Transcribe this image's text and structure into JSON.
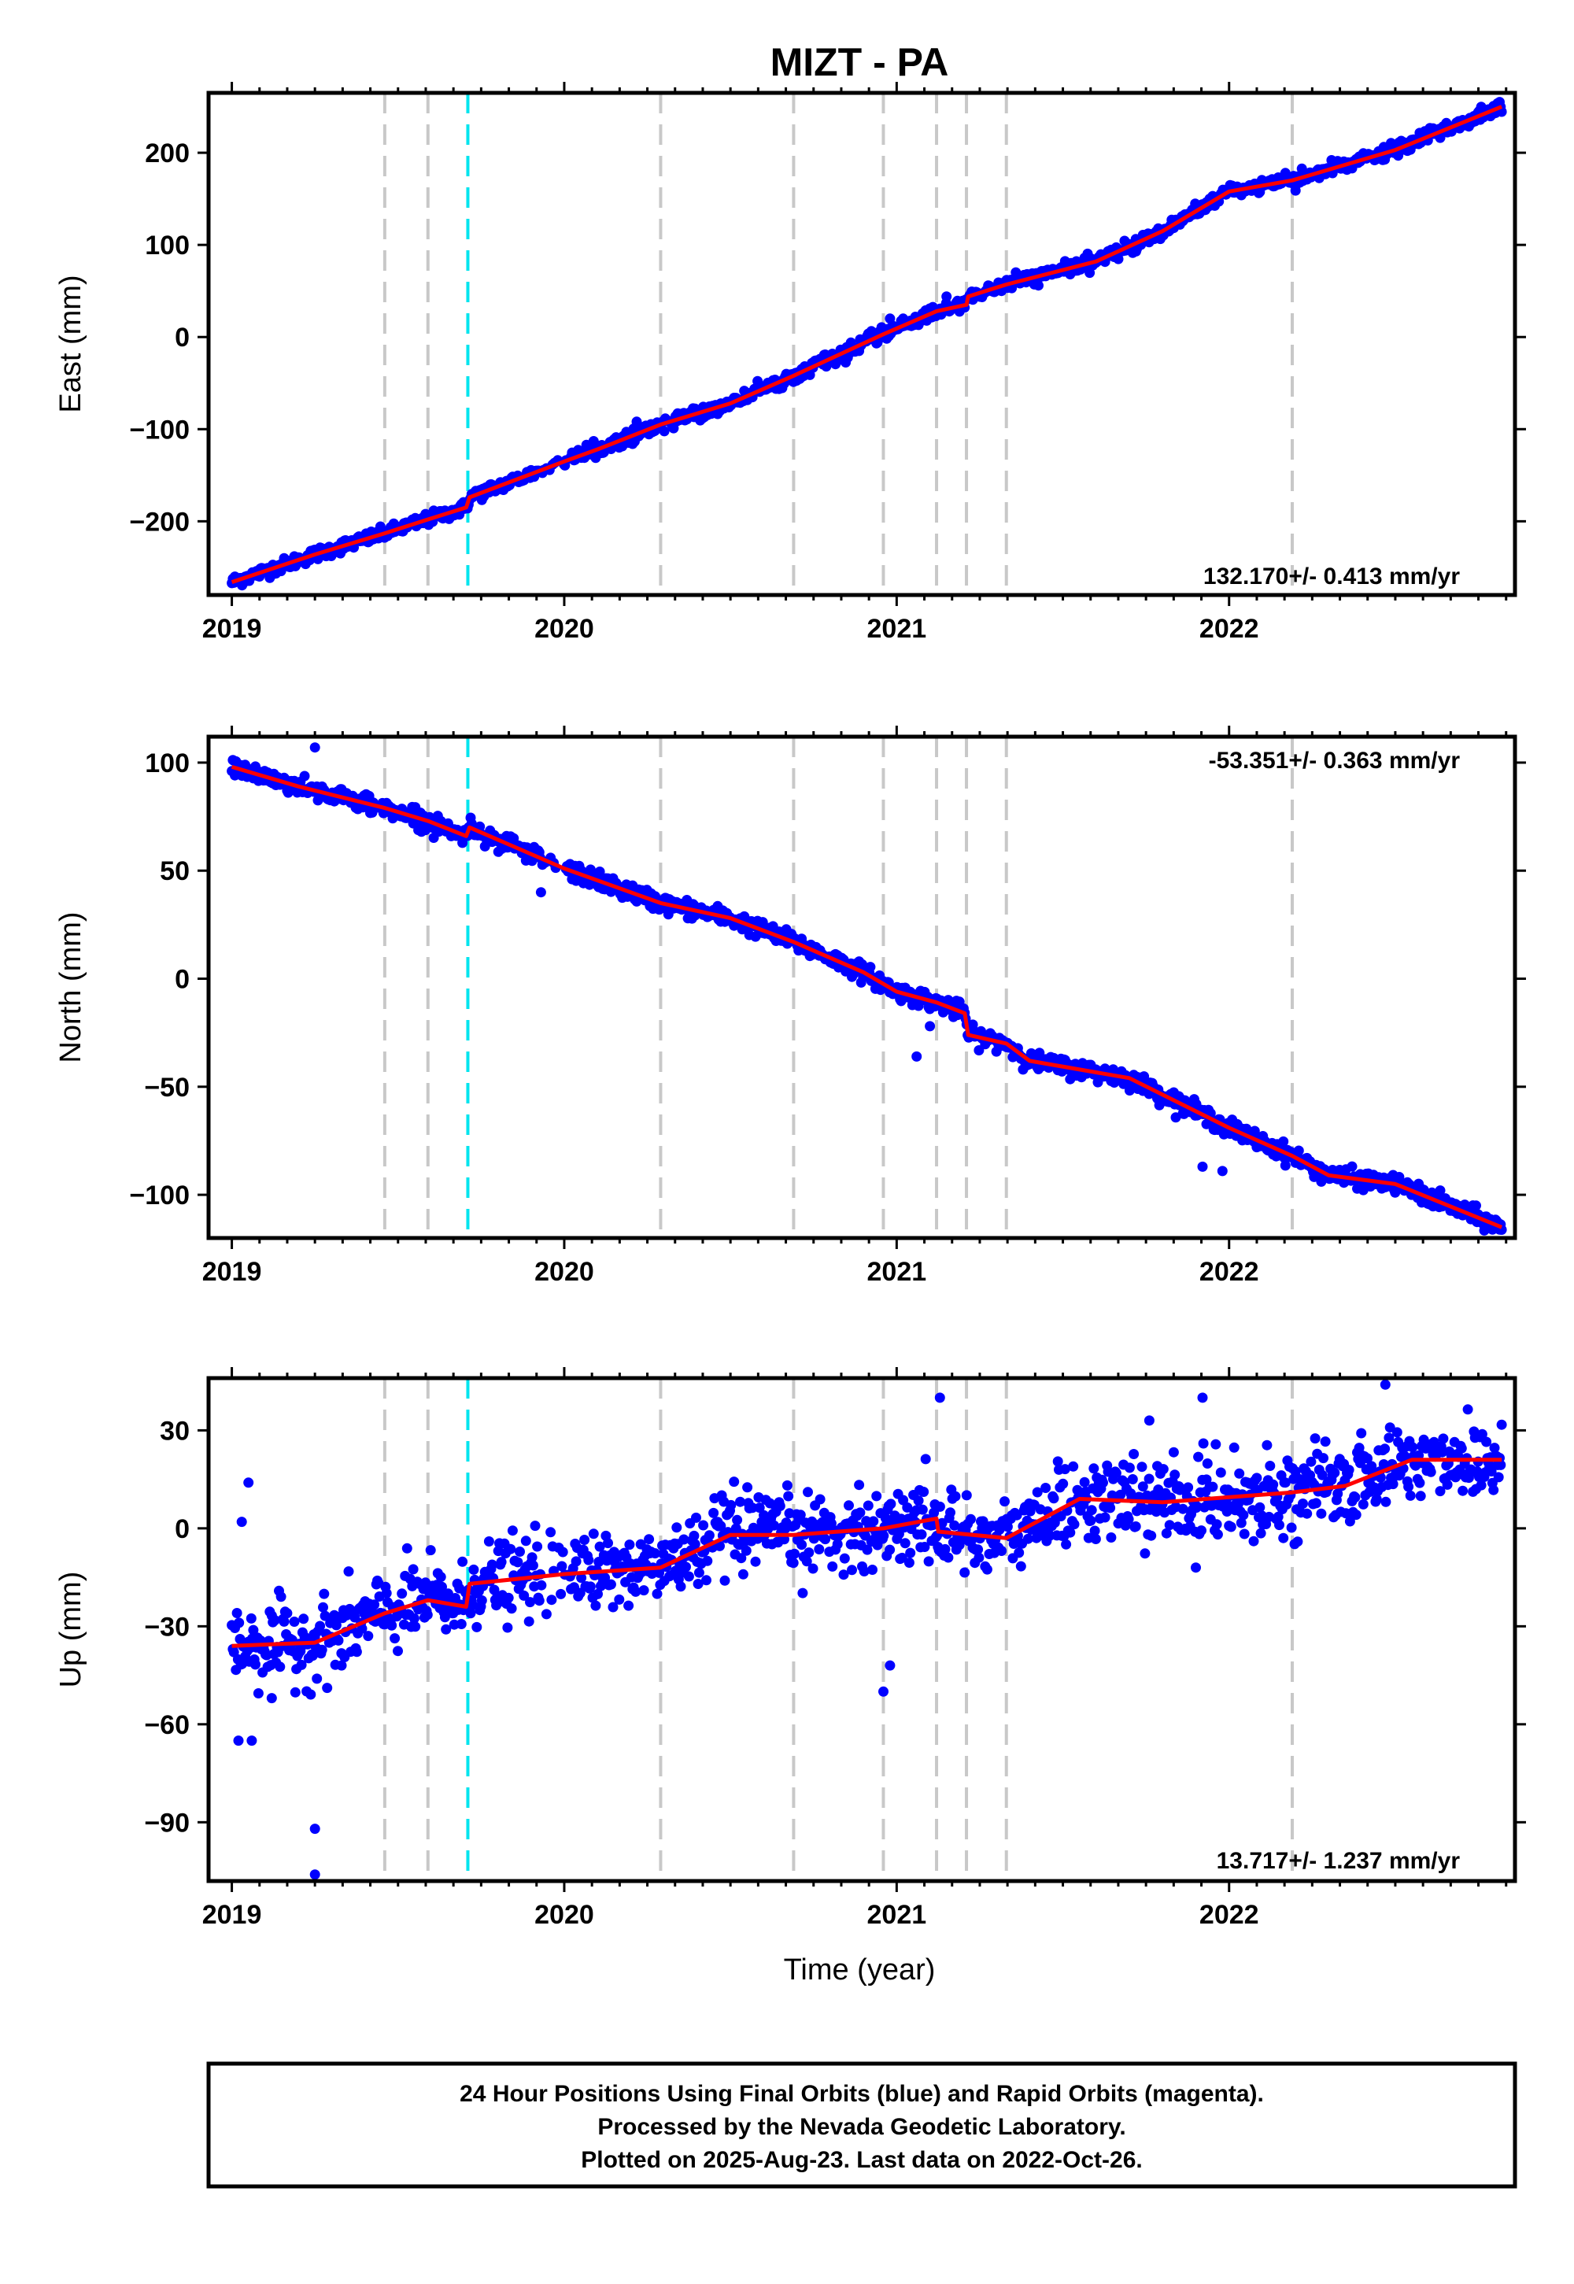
{
  "title": "MIZT - PA",
  "xlabel": "Time (year)",
  "footer": {
    "line1": "24 Hour Positions Using Final Orbits (blue) and Rapid Orbits (magenta).",
    "line2": "Processed by the Nevada Geodetic Laboratory.",
    "line3": "Plotted on 2025-Aug-23. Last data on 2022-Oct-26."
  },
  "colors": {
    "points": "#0000ff",
    "model": "#ff0000",
    "gray_marker": "#c8c8c8",
    "cyan_marker": "#00e5ee"
  },
  "chart_data": [
    {
      "type": "scatter",
      "component": "east",
      "ylabel": "East (mm)",
      "xlim": [
        2018.93,
        2022.86
      ],
      "ylim": [
        -280,
        265
      ],
      "yticks": [
        -200,
        -100,
        0,
        100,
        200
      ],
      "xticks": [
        2019,
        2020,
        2021,
        2022
      ],
      "rate_text": "132.170+/- 0.413 mm/yr",
      "gray_markers": [
        2019.46,
        2019.59,
        2020.29,
        2020.69,
        2020.96,
        2021.12,
        2021.21,
        2021.33,
        2022.19
      ],
      "cyan_markers": [
        2019.71
      ],
      "model": [
        [
          2019.0,
          -266
        ],
        [
          2019.25,
          -236
        ],
        [
          2019.46,
          -213
        ],
        [
          2019.59,
          -198
        ],
        [
          2019.705,
          -185
        ],
        [
          2019.715,
          -174
        ],
        [
          2020.0,
          -135
        ],
        [
          2020.1,
          -122
        ],
        [
          2020.29,
          -95
        ],
        [
          2020.5,
          -72
        ],
        [
          2020.69,
          -42
        ],
        [
          2020.9,
          -7
        ],
        [
          2020.96,
          3
        ],
        [
          2021.12,
          28
        ],
        [
          2021.21,
          35
        ],
        [
          2021.215,
          44
        ],
        [
          2021.33,
          57
        ],
        [
          2021.6,
          82
        ],
        [
          2021.8,
          115
        ],
        [
          2022.0,
          158
        ],
        [
          2022.19,
          170
        ],
        [
          2022.5,
          203
        ],
        [
          2022.82,
          250
        ]
      ],
      "outliers": [
        [
          2022.2,
          159
        ],
        [
          2021.72,
          93
        ],
        [
          2020.98,
          20
        ],
        [
          2021.15,
          44
        ]
      ],
      "scatter_sd": 3.5
    },
    {
      "type": "scatter",
      "component": "north",
      "ylabel": "North (mm)",
      "xlim": [
        2018.93,
        2022.86
      ],
      "ylim": [
        -120,
        112
      ],
      "yticks": [
        -100,
        -50,
        0,
        50,
        100
      ],
      "xticks": [
        2019,
        2020,
        2021,
        2022
      ],
      "rate_text": "-53.351+/- 0.363 mm/yr",
      "gray_markers": [
        2019.46,
        2019.59,
        2020.29,
        2020.69,
        2020.96,
        2021.12,
        2021.21,
        2021.33,
        2022.19
      ],
      "cyan_markers": [
        2019.71
      ],
      "model": [
        [
          2019.0,
          98
        ],
        [
          2019.2,
          89
        ],
        [
          2019.46,
          79
        ],
        [
          2019.59,
          73
        ],
        [
          2019.705,
          66
        ],
        [
          2019.715,
          70
        ],
        [
          2020.0,
          51
        ],
        [
          2020.29,
          35
        ],
        [
          2020.5,
          28
        ],
        [
          2020.69,
          17
        ],
        [
          2020.9,
          3
        ],
        [
          2021.0,
          -6
        ],
        [
          2021.12,
          -11
        ],
        [
          2021.205,
          -16
        ],
        [
          2021.215,
          -26
        ],
        [
          2021.33,
          -30
        ],
        [
          2021.4,
          -38
        ],
        [
          2021.7,
          -46
        ],
        [
          2022.0,
          -69
        ],
        [
          2022.19,
          -82
        ],
        [
          2022.3,
          -91
        ],
        [
          2022.5,
          -95
        ],
        [
          2022.82,
          -115
        ]
      ],
      "outliers": [
        [
          2019.25,
          107
        ],
        [
          2021.06,
          -36
        ],
        [
          2019.93,
          40
        ],
        [
          2021.92,
          -87
        ],
        [
          2021.98,
          -89
        ],
        [
          2021.1,
          -22
        ]
      ],
      "scatter_sd": 2.0
    },
    {
      "type": "scatter",
      "component": "up",
      "ylabel": "Up (mm)",
      "xlim": [
        2018.93,
        2022.86
      ],
      "ylim": [
        -108,
        46
      ],
      "yticks": [
        -90,
        -60,
        -30,
        0,
        30
      ],
      "xticks": [
        2019,
        2020,
        2021,
        2022
      ],
      "rate_text": "13.717+/- 1.237 mm/yr",
      "gray_markers": [
        2019.46,
        2019.59,
        2020.29,
        2020.69,
        2020.96,
        2021.12,
        2021.21,
        2021.33,
        2022.19
      ],
      "cyan_markers": [
        2019.71
      ],
      "model": [
        [
          2019.0,
          -36
        ],
        [
          2019.25,
          -35
        ],
        [
          2019.46,
          -26
        ],
        [
          2019.59,
          -22
        ],
        [
          2019.705,
          -24
        ],
        [
          2019.715,
          -17
        ],
        [
          2020.0,
          -14
        ],
        [
          2020.29,
          -12
        ],
        [
          2020.5,
          -2
        ],
        [
          2020.69,
          -2
        ],
        [
          2020.96,
          0
        ],
        [
          2021.12,
          3
        ],
        [
          2021.125,
          -1
        ],
        [
          2021.33,
          -3
        ],
        [
          2021.55,
          9
        ],
        [
          2021.8,
          8
        ],
        [
          2022.19,
          11
        ],
        [
          2022.35,
          13
        ],
        [
          2022.55,
          21
        ],
        [
          2022.82,
          21
        ]
      ],
      "outliers": [
        [
          2019.02,
          -65
        ],
        [
          2019.06,
          -65
        ],
        [
          2019.25,
          -92
        ],
        [
          2019.25,
          -106
        ],
        [
          2019.05,
          14
        ],
        [
          2019.03,
          2
        ],
        [
          2020.96,
          -50
        ],
        [
          2020.98,
          -42
        ],
        [
          2021.13,
          40
        ],
        [
          2021.76,
          33
        ],
        [
          2021.92,
          40
        ],
        [
          2022.47,
          44
        ],
        [
          2021.9,
          -12
        ],
        [
          2019.12,
          -52
        ],
        [
          2019.33,
          -42
        ]
      ],
      "scatter_sd": 6.0
    }
  ]
}
